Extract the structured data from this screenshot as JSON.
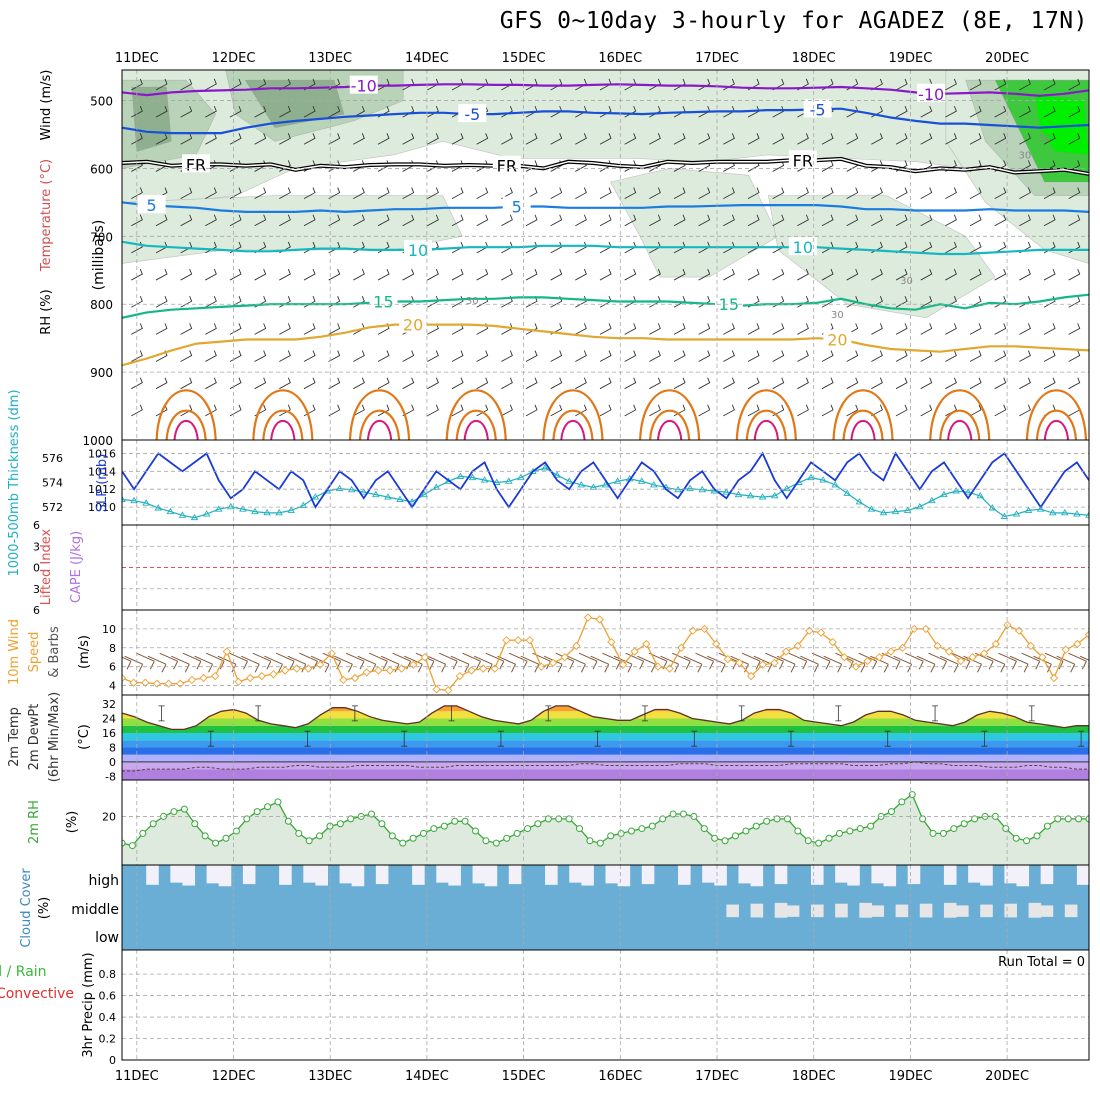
{
  "title": "GFS 0~10day 3-hourly for AGADEZ (8E, 17N)",
  "colors": {
    "frame": "#000000",
    "grid": "#a8a8a8",
    "rh_light": "#dcebdc",
    "rh_mid": "#b9d3b9",
    "rh_dark": "#8fb08f",
    "rh_green": "#3ec83e",
    "rh_bright": "#00ee00",
    "t_m10": "#8a18c8",
    "t_m5": "#1a4fd8",
    "t_fr": "#000000",
    "t_5": "#1a7ce0",
    "t_10": "#16b8c0",
    "t_15": "#12b888",
    "t_20": "#e0a830",
    "t_25": "#e07818",
    "t_30": "#d8187a",
    "slp": "#1a3ad8",
    "thick": "#20b0c0",
    "li_zero": "#e05050",
    "wind10": "#f0a030",
    "barb": "#80583a",
    "temp_line": "#603020",
    "dewpt_fill": "#b080e0",
    "rh2m": "#38a838",
    "rh2m_fill": "#ddeadd",
    "cloud": "#6aaed6",
    "cloud_gap": "#f2f0f8",
    "cloud_mid_gap": "#e6e6e6"
  },
  "chart_data": {
    "type": "meteogram",
    "title": "GFS 0~10day 3-hourly for AGADEZ (8E, 17N)",
    "days": [
      "11DEC",
      "12DEC",
      "13DEC",
      "14DEC",
      "15DEC",
      "16DEC",
      "17DEC",
      "18DEC",
      "19DEC",
      "20DEC"
    ],
    "xlim_days": [
      0.45,
      10.25
    ],
    "panels": {
      "upper_air": {
        "ylabel": "(millibars)",
        "side_labels": [
          "RH (%)",
          "Temperature (°C)",
          "Wind (m/s)"
        ],
        "pressure_ticks": [
          500,
          600,
          700,
          800,
          900,
          1000
        ],
        "ylim_mb": [
          455,
          1000
        ],
        "isotherms": [
          {
            "label": "-10",
            "color_key": "t_m10",
            "labels_at_days": [
              2.9,
              8.65
            ],
            "values_mb": [
              488,
              492,
              488,
              486,
              485,
              484,
              482,
              482,
              481,
              480,
              478,
              478,
              477,
              476,
              476,
              477,
              477,
              478,
              478,
              477,
              476,
              477,
              478,
              478,
              479,
              481,
              482,
              482,
              481,
              480,
              482,
              484,
              488,
              490,
              489,
              488,
              490,
              493,
              490,
              485
            ]
          },
          {
            "label": "-5",
            "color_key": "t_m5",
            "labels_at_days": [
              4.0,
              7.5
            ],
            "values_mb": [
              540,
              546,
              548,
              548,
              548,
              540,
              534,
              530,
              527,
              524,
              522,
              520,
              518,
              518,
              520,
              520,
              518,
              516,
              516,
              518,
              519,
              520,
              518,
              517,
              516,
              516,
              514,
              514,
              513,
              512,
              518,
              525,
              530,
              534,
              534,
              536,
              538,
              540,
              538,
              536
            ]
          },
          {
            "label": "FR",
            "color_key": "t_fr",
            "labels_at_days": [
              1.2,
              4.35,
              7.35
            ],
            "values_mb": [
              592,
              590,
              596,
              594,
              594,
              596,
              594,
              602,
              596,
              598,
              595,
              594,
              594,
              596,
              595,
              596,
              596,
              600,
              590,
              592,
              596,
              598,
              590,
              592,
              590,
              590,
              590,
              588,
              588,
              586,
              596,
              598,
              604,
              600,
              602,
              598,
              606,
              604,
              602,
              608
            ]
          },
          {
            "label": "5",
            "color_key": "t_5",
            "labels_at_days": [
              0.75,
              4.45
            ],
            "values_mb": [
              650,
              654,
              656,
              658,
              662,
              664,
              664,
              664,
              662,
              664,
              662,
              660,
              660,
              658,
              658,
              658,
              656,
              656,
              658,
              658,
              658,
              658,
              656,
              656,
              655,
              654,
              654,
              654,
              654,
              656,
              660,
              660,
              662,
              662,
              662,
              660,
              662,
              662,
              662,
              664
            ]
          },
          {
            "label": "10",
            "color_key": "t_10",
            "labels_at_days": [
              3.45,
              7.35
            ],
            "values_mb": [
              708,
              714,
              716,
              718,
              720,
              722,
              722,
              720,
              718,
              718,
              720,
              720,
              720,
              718,
              716,
              716,
              716,
              714,
              714,
              714,
              716,
              716,
              716,
              716,
              716,
              716,
              716,
              716,
              716,
              718,
              720,
              722,
              724,
              726,
              726,
              724,
              722,
              720,
              720,
              720
            ]
          },
          {
            "label": "15",
            "color_key": "t_15",
            "labels_at_days": [
              3.1,
              6.6
            ],
            "values_mb": [
              820,
              812,
              808,
              806,
              804,
              802,
              800,
              800,
              800,
              800,
              798,
              796,
              796,
              794,
              792,
              792,
              790,
              790,
              792,
              794,
              796,
              796,
              796,
              798,
              800,
              802,
              800,
              800,
              798,
              792,
              800,
              806,
              808,
              800,
              806,
              798,
              800,
              796,
              790,
              786
            ]
          },
          {
            "label": "20",
            "color_key": "t_20",
            "labels_at_days": [
              3.4,
              7.7
            ],
            "values_mb": [
              890,
              880,
              868,
              858,
              855,
              852,
              852,
              852,
              848,
              842,
              834,
              830,
              830,
              830,
              830,
              832,
              836,
              840,
              844,
              848,
              850,
              850,
              852,
              852,
              852,
              852,
              852,
              852,
              850,
              852,
              860,
              866,
              868,
              870,
              866,
              862,
              862,
              864,
              866,
              868
            ]
          }
        ],
        "contour_label": "30"
      },
      "slp_thickness": {
        "left_axis_label": "1000-500mb Thickness (dm)",
        "right_axis_label": "SLP (mb)",
        "thickness_ticks": [
          572,
          574,
          576
        ],
        "slp_ticks": [
          1010,
          1012,
          1014,
          1016
        ],
        "slp_mb": [
          1014,
          1012,
          1014,
          1016,
          1015,
          1014,
          1015,
          1016,
          1013,
          1011,
          1012,
          1014,
          1013,
          1012,
          1014,
          1013,
          1010,
          1012,
          1014,
          1013,
          1011,
          1013,
          1014,
          1012,
          1010,
          1012,
          1014,
          1013,
          1012,
          1014,
          1015,
          1012,
          1010,
          1012,
          1014,
          1015,
          1013,
          1012,
          1014,
          1015,
          1013,
          1011,
          1013,
          1015,
          1014,
          1012,
          1011,
          1013,
          1014,
          1012,
          1011,
          1013,
          1014,
          1016,
          1013,
          1011,
          1013,
          1015,
          1014,
          1013,
          1015,
          1016,
          1014,
          1013,
          1016,
          1014,
          1012,
          1014,
          1015,
          1013,
          1011,
          1013,
          1015,
          1016,
          1014,
          1012,
          1010,
          1012,
          1014,
          1015,
          1013
        ],
        "thickness_dm": [
          572.6,
          572.5,
          572.3,
          571.9,
          571.6,
          571.3,
          571.1,
          571.4,
          571.8,
          572.0,
          571.8,
          571.6,
          571.5,
          571.5,
          571.7,
          572.1,
          572.8,
          573.3,
          573.5,
          573.4,
          573.2,
          573.0,
          572.8,
          572.6,
          572.4,
          573.0,
          573.6,
          574.1,
          574.5,
          574.4,
          574.2,
          574.0,
          574.1,
          574.4,
          574.9,
          575.2,
          574.6,
          574.1,
          573.8,
          573.6,
          573.8,
          574.1,
          574.3,
          574.1,
          573.8,
          573.6,
          573.4,
          573.5,
          573.4,
          573.3,
          573.2,
          573.0,
          572.9,
          572.8,
          572.9,
          573.5,
          574.0,
          574.4,
          574.2,
          573.8,
          573.1,
          572.4,
          571.8,
          571.5,
          571.6,
          571.7,
          572.0,
          572.5,
          573.0,
          573.3,
          573.2,
          572.9,
          571.9,
          571.2,
          571.4,
          571.7,
          571.8,
          571.5,
          571.5,
          571.4,
          571.3
        ]
      },
      "stability": {
        "labels": [
          "Lifted Index",
          "CAPE (J/kg)"
        ],
        "ticks": [
          6,
          3,
          0,
          -3,
          -6
        ],
        "tick_labels": [
          "6",
          "3",
          "0",
          "3",
          "6"
        ]
      },
      "wind10m": {
        "labels": [
          "10m Wind",
          "Speed",
          "& Barbs"
        ],
        "unit": "(m/s)",
        "ticks": [
          4,
          6,
          8,
          10
        ],
        "ylim": [
          3,
          12
        ],
        "speed_ms": [
          4.8,
          4.3,
          4.3,
          4.2,
          4.2,
          4.2,
          4.6,
          4.8,
          5.0,
          7.6,
          4.4,
          4.8,
          5.0,
          5.2,
          5.6,
          5.8,
          5.8,
          6.2,
          7.4,
          4.6,
          4.8,
          5.4,
          5.6,
          5.6,
          5.8,
          6.2,
          7.0,
          3.6,
          3.5,
          5.0,
          5.6,
          5.8,
          5.8,
          8.8,
          8.8,
          8.8,
          6.0,
          6.4,
          7.0,
          8.2,
          11.2,
          11.0,
          8.6,
          6.2,
          7.6,
          8.4,
          6.0,
          5.8,
          8.0,
          9.8,
          10.0,
          8.4,
          6.8,
          6.4,
          5.0,
          6.2,
          6.4,
          7.6,
          8.2,
          9.8,
          9.6,
          8.6,
          7.0,
          6.0,
          6.6,
          7.0,
          7.6,
          8.0,
          10.0,
          10.0,
          8.2,
          7.6,
          6.6,
          7.0,
          7.4,
          8.4,
          10.4,
          9.8,
          8.2,
          7.0,
          4.8,
          7.8,
          8.4,
          9.4
        ]
      },
      "temp2m": {
        "labels": [
          "2m Temp",
          "2m DewPt",
          "(6hr Min/Max)"
        ],
        "unit": "(°C)",
        "ticks": [
          -8,
          0,
          8,
          16,
          24,
          32
        ],
        "ylim": [
          -10,
          37
        ],
        "temp_c": [
          27,
          25,
          22,
          20,
          18,
          18,
          20,
          25,
          28,
          29,
          27,
          23,
          21,
          20,
          19,
          21,
          26,
          30,
          30,
          28,
          25,
          23,
          22,
          21,
          22,
          27,
          31,
          31,
          28,
          25,
          23,
          22,
          21,
          23,
          28,
          31,
          31,
          28,
          25,
          24,
          23,
          23,
          26,
          29,
          29,
          27,
          24,
          23,
          22,
          21,
          23,
          27,
          29,
          29,
          27,
          23,
          22,
          21,
          20,
          22,
          26,
          28,
          28,
          26,
          23,
          22,
          21,
          20,
          22,
          26,
          28,
          27,
          25,
          22,
          21,
          20,
          19,
          20,
          20
        ],
        "dewpt_c": [
          -5,
          -5,
          -4,
          -4,
          -4,
          -4,
          -3,
          -3,
          -4,
          -4,
          -4,
          -3,
          -3,
          -3,
          -2,
          -2,
          -3,
          -3,
          -3,
          -2,
          -2,
          -2,
          -2,
          -2,
          -3,
          -3,
          -3,
          -2,
          -2,
          -2,
          -2,
          -2,
          -2,
          -2,
          -2,
          -2,
          -2,
          -1,
          -1,
          -2,
          -2,
          -2,
          -2,
          -2,
          -2,
          -1,
          -1,
          -1,
          -2,
          -2,
          -2,
          -2,
          -2,
          -2,
          -1,
          -1,
          -1,
          -1,
          -1,
          -2,
          -2,
          -2,
          -1,
          -1,
          0,
          -1,
          -1,
          -2,
          -2,
          -2,
          -3,
          -3,
          -3,
          -2,
          -2,
          -3,
          -3,
          -4,
          -4
        ]
      },
      "rh2m": {
        "labels": [
          "2m RH"
        ],
        "unit": "(%)",
        "ticks": [
          20
        ],
        "ylim": [
          0,
          35
        ],
        "rh_pct": [
          9,
          8,
          13,
          17,
          20,
          22,
          23,
          17,
          12,
          9,
          11,
          14,
          19,
          22,
          24,
          26,
          18,
          13,
          10,
          12,
          16,
          17,
          19,
          20,
          21,
          17,
          12,
          9,
          11,
          13,
          15,
          16,
          18,
          18,
          14,
          10,
          9,
          11,
          13,
          15,
          17,
          19,
          19,
          19,
          15,
          10,
          9,
          12,
          13,
          14,
          15,
          16,
          19,
          21,
          21,
          20,
          15,
          11,
          10,
          12,
          14,
          16,
          18,
          19,
          19,
          14,
          10,
          9,
          11,
          13,
          14,
          15,
          16,
          20,
          22,
          26,
          29,
          19,
          13,
          13,
          15,
          17,
          19,
          20,
          20,
          15,
          11,
          10,
          12,
          16,
          19,
          19,
          19,
          19
        ]
      },
      "cloud": {
        "label": "Cloud Cover",
        "unit": "(%)",
        "levels": [
          "high",
          "middle",
          "low"
        ]
      },
      "precip": {
        "labels": [
          "Total / Rain",
          "Convective",
          "3hr Precip (mm)"
        ],
        "ticks": [
          0,
          0.2,
          0.4,
          0.6,
          0.8
        ],
        "tick_labels": [
          "0",
          "0.2",
          "0.4",
          "0.6",
          "0.8"
        ],
        "ylim": [
          0,
          0.95
        ],
        "run_total_label": "Run Total = 0"
      }
    }
  }
}
